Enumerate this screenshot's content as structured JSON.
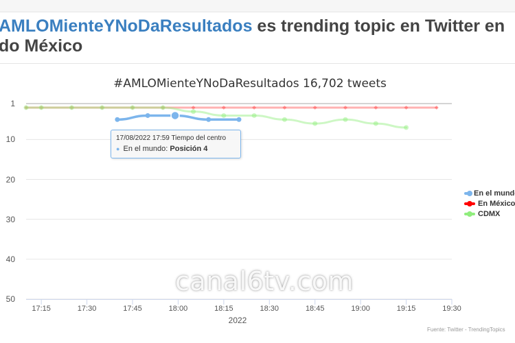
{
  "headline": {
    "hashtag": "AMLOMienteYNoDaResultados",
    "rest": " es trending topic en Twitter en",
    "line2": "do México"
  },
  "chart_data": {
    "type": "line",
    "title": "#AMLOMienteYNoDaResultados 16,702 tweets",
    "xlabel": "2022",
    "ylabel": "",
    "y_reversed": true,
    "ylim": [
      1,
      50
    ],
    "y_ticks": [
      "1",
      "10",
      "20",
      "30",
      "40",
      "50"
    ],
    "x_ticks": [
      "17:15",
      "17:30",
      "17:45",
      "18:00",
      "18:15",
      "18:30",
      "18:45",
      "19:00",
      "19:15",
      "19:30"
    ],
    "xlim": [
      "17:10",
      "19:30"
    ],
    "grid": true,
    "legend_position": "right",
    "series": [
      {
        "name": "En el mundo",
        "color": "#7cb5ec",
        "x": [
          "17:40",
          "17:50",
          "17:59",
          "18:10",
          "18:20"
        ],
        "y": [
          5,
          4,
          4,
          5,
          5
        ]
      },
      {
        "name": "En México",
        "color": "#ff0000",
        "x": [
          "17:10",
          "17:15",
          "17:25",
          "17:35",
          "17:45",
          "17:55",
          "18:05",
          "18:15",
          "18:25",
          "18:35",
          "18:45",
          "18:55",
          "19:05",
          "19:15",
          "19:25"
        ],
        "y": [
          2,
          2,
          2,
          2,
          2,
          2,
          2,
          2,
          2,
          2,
          2,
          2,
          2,
          2,
          2
        ]
      },
      {
        "name": "CDMX",
        "color": "#90ed7d",
        "x": [
          "17:10",
          "17:15",
          "17:25",
          "17:35",
          "17:45",
          "17:55",
          "18:05",
          "18:15",
          "18:25",
          "18:35",
          "18:45",
          "18:55",
          "19:05",
          "19:15"
        ],
        "y": [
          2,
          2,
          2,
          2,
          2,
          2,
          3,
          4,
          4,
          5,
          6,
          5,
          6,
          7
        ]
      }
    ]
  },
  "tooltip": {
    "header": "17/08/2022 17:59 Tiempo del centro",
    "series_name": "En el mundo:",
    "value": "Posición 4"
  },
  "legend": [
    "En el mundo",
    "En México",
    "CDMX"
  ],
  "watermark": "canal6tv.com",
  "credits": "Fuente: Twitter - TrendingTopics"
}
